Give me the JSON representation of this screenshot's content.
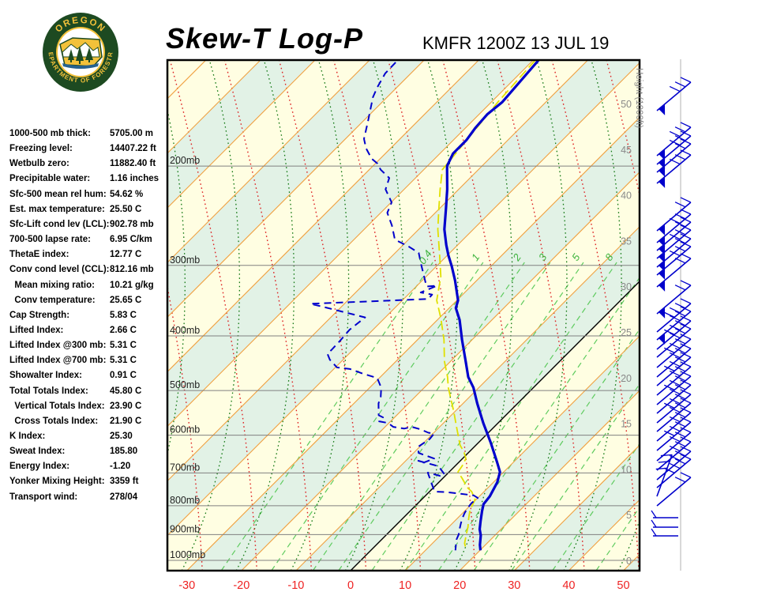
{
  "header": {
    "title": "Skew-T Log-P",
    "station": "KMFR 1200Z 13 JUL 19"
  },
  "logo": {
    "top_text": "OREGON",
    "bottom_text": "DEPARTMENT OF FORESTRY",
    "ring_color": "#1d4a21",
    "text_color": "#f3c13a"
  },
  "stats": {
    "rows": [
      {
        "label": "1000-500 mb thick:",
        "value": "5705.00 m"
      },
      {
        "label": "Freezing level:",
        "value": "14407.22 ft"
      },
      {
        "label": "Wetbulb zero:",
        "value": "11882.40 ft"
      },
      {
        "label": "Precipitable water:",
        "value": "1.16 inches"
      },
      {
        "label": "Sfc-500 mean rel hum:",
        "value": "54.62 %"
      },
      {
        "label": "Est. max temperature:",
        "value": "25.50 C"
      },
      {
        "label": "Sfc-Lift cond lev (LCL):",
        "value": "902.78 mb"
      },
      {
        "label": "700-500 lapse rate:",
        "value": "6.95 C/km"
      },
      {
        "label": "ThetaE index:",
        "value": "12.77 C"
      },
      {
        "label": "Conv cond level (CCL):",
        "value": "812.16 mb"
      },
      {
        "label": "  Mean mixing ratio:",
        "value": "10.21 g/kg"
      },
      {
        "label": "  Conv temperature:",
        "value": "25.65 C"
      },
      {
        "label": "Cap Strength:",
        "value": "5.83 C"
      },
      {
        "label": "Lifted Index:",
        "value": "2.66 C"
      },
      {
        "label": "Lifted Index @300 mb:",
        "value": "5.31 C"
      },
      {
        "label": "Lifted Index @700 mb:",
        "value": "5.31 C"
      },
      {
        "label": "Showalter Index:",
        "value": "0.91 C"
      },
      {
        "label": "Total Totals Index:",
        "value": "45.80 C"
      },
      {
        "label": "  Vertical Totals Index:",
        "value": "23.90 C"
      },
      {
        "label": "  Cross Totals Index:",
        "value": "21.90 C"
      },
      {
        "label": "K Index:",
        "value": "25.30"
      },
      {
        "label": "Sweat Index:",
        "value": "185.80"
      },
      {
        "label": "Energy Index:",
        "value": "-1.20"
      },
      {
        "label": "Yonker Mixing Height:",
        "value": "3359 ft"
      },
      {
        "label": "Transport wind:",
        "value": "278/04"
      }
    ]
  },
  "chart_data": {
    "type": "skewt",
    "title": "Skew-T Log-P",
    "station_id": "KMFR",
    "valid": "1200Z 13 JUL 19",
    "pressure_labels": [
      "200mb",
      "300mb",
      "400mb",
      "500mb",
      "600mb",
      "700mb",
      "800mb",
      "900mb",
      "1000mb"
    ],
    "pressure_levels": [
      200,
      300,
      400,
      500,
      600,
      700,
      800,
      900,
      1000
    ],
    "height_axis": {
      "label": "Height (1000ft)",
      "ticks": [
        50,
        45,
        40,
        35,
        30,
        25,
        20,
        15,
        10,
        5,
        0
      ]
    },
    "temp_axis": {
      "unit": "C",
      "ticks": [
        -30,
        -20,
        -10,
        0,
        10,
        20,
        30,
        40,
        50
      ]
    },
    "isotherm_step": 10,
    "mixing_ratio_lines": [
      {
        "label": "0.4",
        "t_bottom": -23.7
      },
      {
        "label": "1",
        "t_bottom": -14.5
      },
      {
        "label": "2",
        "t_bottom": -6.9
      },
      {
        "label": "3",
        "t_bottom": -2.2
      },
      {
        "label": "5",
        "t_bottom": 3.9
      },
      {
        "label": "8",
        "t_bottom": 10.0
      },
      {
        "label": "",
        "t_bottom": 16.1
      },
      {
        "label": "",
        "t_bottom": 22.6
      },
      {
        "label": "",
        "t_bottom": 29.5
      },
      {
        "label": "",
        "t_bottom": 37.0
      },
      {
        "label": "",
        "t_bottom": 45.0
      }
    ],
    "series": [
      {
        "name": "temperature",
        "style": "solid",
        "color": "#0000cc",
        "width": 3.2,
        "points_p_t": [
          [
            130,
            -59
          ],
          [
            154,
            -58
          ],
          [
            162,
            -58.5
          ],
          [
            171,
            -58.2
          ],
          [
            180,
            -57.6
          ],
          [
            190,
            -57.6
          ],
          [
            200,
            -56.4
          ],
          [
            220,
            -52.1
          ],
          [
            238,
            -48.8
          ],
          [
            259,
            -45.3
          ],
          [
            276,
            -42.1
          ],
          [
            288,
            -39.8
          ],
          [
            301,
            -37.2
          ],
          [
            319,
            -34.0
          ],
          [
            346,
            -29.8
          ],
          [
            357,
            -28.8
          ],
          [
            375,
            -25.9
          ],
          [
            406,
            -21.9
          ],
          [
            444,
            -17.2
          ],
          [
            473,
            -13.9
          ],
          [
            494,
            -11.0
          ],
          [
            527,
            -7.4
          ],
          [
            571,
            -2.7
          ],
          [
            619,
            2.3
          ],
          [
            671,
            7.1
          ],
          [
            697,
            9.3
          ],
          [
            727,
            10.7
          ],
          [
            770,
            11.9
          ],
          [
            795,
            12.2
          ],
          [
            818,
            13.2
          ],
          [
            853,
            14.8
          ],
          [
            881,
            16.1
          ],
          [
            903,
            17.4
          ],
          [
            939,
            19.0
          ],
          [
            960,
            20.1
          ]
        ]
      },
      {
        "name": "dewpoint",
        "style": "dashed",
        "color": "#0000cc",
        "width": 2,
        "points_p_t": [
          [
            131,
            -84.8
          ],
          [
            137,
            -84.7
          ],
          [
            145,
            -83.6
          ],
          [
            151,
            -82.6
          ],
          [
            167,
            -79.0
          ],
          [
            179,
            -76.6
          ],
          [
            186,
            -74.5
          ],
          [
            194,
            -71.6
          ],
          [
            198,
            -69.6
          ],
          [
            203,
            -67.9
          ],
          [
            210,
            -64.8
          ],
          [
            220,
            -63.4
          ],
          [
            232,
            -59.9
          ],
          [
            242,
            -58.8
          ],
          [
            255,
            -55.6
          ],
          [
            270,
            -52.5
          ],
          [
            278,
            -48.6
          ],
          [
            285,
            -45.7
          ],
          [
            299,
            -43.1
          ],
          [
            327,
            -38.1
          ],
          [
            326,
            -36.3
          ],
          [
            335,
            -38.1
          ],
          [
            338,
            -35.6
          ],
          [
            344,
            -35.5
          ],
          [
            351,
            -56.2
          ],
          [
            355,
            -53.5
          ],
          [
            371,
            -43.7
          ],
          [
            390,
            -44.3
          ],
          [
            409,
            -44.0
          ],
          [
            424,
            -43.9
          ],
          [
            430,
            -44.0
          ],
          [
            441,
            -42.4
          ],
          [
            455,
            -39.7
          ],
          [
            458,
            -37.0
          ],
          [
            467,
            -33.7
          ],
          [
            475,
            -30.4
          ],
          [
            494,
            -27.9
          ],
          [
            513,
            -26.3
          ],
          [
            527,
            -25.5
          ],
          [
            553,
            -23.3
          ],
          [
            558,
            -22.1
          ],
          [
            567,
            -22.1
          ],
          [
            571,
            -20.1
          ],
          [
            580,
            -18.5
          ],
          [
            584,
            -16.2
          ],
          [
            580,
            -15.1
          ],
          [
            586,
            -13.0
          ],
          [
            594,
            -11.0
          ],
          [
            596,
            -9.8
          ],
          [
            609,
            -9.6
          ],
          [
            629,
            -10.3
          ],
          [
            645,
            -9.1
          ],
          [
            660,
            -5.2
          ],
          [
            671,
            -6.4
          ],
          [
            666,
            -7.7
          ],
          [
            681,
            -3.0
          ],
          [
            704,
            -0.4
          ],
          [
            708,
            -1.0
          ],
          [
            699,
            -3.8
          ],
          [
            755,
            0.9
          ],
          [
            757,
            3.2
          ],
          [
            762,
            6.1
          ],
          [
            767,
            8.8
          ],
          [
            775,
            10.0
          ],
          [
            792,
            9.8
          ],
          [
            808,
            10.0
          ],
          [
            826,
            10.4
          ],
          [
            845,
            11.0
          ],
          [
            861,
            11.6
          ],
          [
            881,
            12.4
          ],
          [
            900,
            13.2
          ],
          [
            918,
            13.7
          ],
          [
            939,
            14.6
          ],
          [
            960,
            15.5
          ]
        ]
      },
      {
        "name": "wetbulb",
        "style": "dashed",
        "color": "#e0e000",
        "width": 1.8,
        "points_p_t": [
          [
            130,
            -59.6
          ],
          [
            154,
            -58.8
          ],
          [
            203,
            -56.6
          ],
          [
            220,
            -53.4
          ],
          [
            238,
            -50.1
          ],
          [
            259,
            -46.5
          ],
          [
            288,
            -41.4
          ],
          [
            314,
            -37.3
          ],
          [
            346,
            -33.7
          ],
          [
            372,
            -29.7
          ],
          [
            406,
            -25.2
          ],
          [
            444,
            -21.1
          ],
          [
            473,
            -17.7
          ],
          [
            494,
            -15.6
          ],
          [
            519,
            -12.9
          ],
          [
            544,
            -10.3
          ],
          [
            580,
            -6.9
          ],
          [
            625,
            -2.9
          ],
          [
            643,
            -0.9
          ],
          [
            660,
            0.6
          ],
          [
            681,
            1.3
          ],
          [
            697,
            1.6
          ],
          [
            715,
            3.5
          ],
          [
            743,
            6.2
          ],
          [
            755,
            7.7
          ],
          [
            780,
            9.8
          ],
          [
            800,
            10.4
          ],
          [
            821,
            11.1
          ],
          [
            845,
            12.2
          ],
          [
            872,
            13.5
          ],
          [
            900,
            14.6
          ],
          [
            933,
            15.9
          ],
          [
            960,
            17.5
          ]
        ]
      }
    ],
    "wind_barbs": [
      [
        140,
        1,
        3,
        -40
      ],
      [
        197,
        1,
        3,
        -40
      ],
      [
        208,
        1,
        3,
        -40
      ],
      [
        218,
        1,
        2,
        -40
      ],
      [
        232,
        1,
        3,
        -40
      ],
      [
        292,
        1,
        2,
        -40
      ],
      [
        307,
        1,
        3,
        -40
      ],
      [
        317,
        1,
        2,
        -40
      ],
      [
        327,
        1,
        3,
        -40
      ],
      [
        338,
        1,
        2,
        -40
      ],
      [
        348,
        1,
        3,
        -40
      ],
      [
        363,
        1,
        2,
        -40
      ],
      [
        397,
        1,
        2,
        -40
      ],
      [
        420,
        0,
        4,
        -40
      ],
      [
        430,
        1,
        3,
        -40
      ],
      [
        442,
        0,
        4,
        -40
      ],
      [
        452,
        0,
        3,
        -40
      ],
      [
        465,
        0,
        4,
        -40
      ],
      [
        477,
        0,
        3,
        -40
      ],
      [
        488,
        0,
        4,
        -40
      ],
      [
        500,
        0,
        3,
        -40
      ],
      [
        512,
        0,
        4,
        -40
      ],
      [
        523,
        0,
        3,
        -40
      ],
      [
        535,
        0,
        4,
        -40
      ],
      [
        546,
        0,
        3,
        -40
      ],
      [
        558,
        0,
        3,
        -40
      ],
      [
        570,
        0,
        4,
        -40
      ],
      [
        583,
        0,
        3,
        -40
      ],
      [
        595,
        0,
        3,
        -40
      ],
      [
        607,
        0,
        3,
        -40
      ],
      [
        617,
        0,
        4,
        -40
      ],
      [
        628,
        0,
        3,
        -70
      ],
      [
        640,
        0,
        2,
        -40
      ],
      [
        655,
        0,
        1,
        0
      ],
      [
        667,
        0,
        1,
        0
      ],
      [
        678,
        0,
        1,
        0
      ]
    ],
    "colors": {
      "band_yellow": "#fffee2",
      "band_green": "#e2f2e6",
      "isotherm": "#f0a040",
      "zero_isotherm": "#000000",
      "dry_adiabat": "#dd2222",
      "moist_adiabat": "#117711",
      "mixing_ratio": "#5ecb5e",
      "mixing_label": "#3db33d",
      "pressure_line": "#808080",
      "pressure_label": "#222222",
      "height_label": "#898989",
      "temp_label": "#ee2222",
      "barb": "#0000cc",
      "barb_axis": "#d8d8d8",
      "frame": "#000000"
    },
    "layout_note": "log-p vertical, 45deg skew"
  }
}
